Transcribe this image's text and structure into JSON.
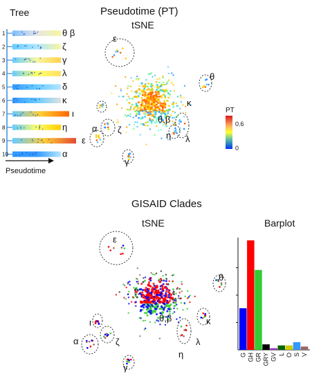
{
  "titles": {
    "tree": "Tree",
    "pseudotime": "Pseudotime (PT)",
    "tsne_top": "tSNE",
    "gisaid": "GISAID Clades",
    "tsne_bottom": "tSNE",
    "barplot": "Barplot",
    "pseudotime_axis": "Pseudotime"
  },
  "colorbar": {
    "label": "PT",
    "tick_high": "0.6",
    "tick_low": "0",
    "colors": [
      "#d7191c",
      "#fdae61",
      "#ffff33",
      "#66c2a5",
      "#2b83ba",
      "#0033ff"
    ]
  },
  "tree": {
    "rows": [
      {
        "index": "1",
        "letter": "θ β",
        "colors": [
          "#7fbfff",
          "#e6e6e6",
          "#f7f7a0"
        ]
      },
      {
        "index": "2",
        "letter": "ζ",
        "colors": [
          "#66ccff",
          "#aee6ff",
          "#f7f7a0"
        ]
      },
      {
        "index": "3",
        "letter": "γ",
        "colors": [
          "#66ccff",
          "#f7f7a0",
          "#ffd24d"
        ]
      },
      {
        "index": "4",
        "letter": "λ",
        "colors": [
          "#66ccff",
          "#ffff66",
          "#ffe066"
        ]
      },
      {
        "index": "5",
        "letter": "δ",
        "colors": [
          "#3399ff",
          "#66ccff",
          "#b3e6ff"
        ]
      },
      {
        "index": "6",
        "letter": "κ",
        "colors": [
          "#3399ff",
          "#66ccff",
          "#e0e0e0"
        ]
      },
      {
        "index": "7",
        "letter": "ι",
        "colors": [
          "#66ccff",
          "#ffcc33",
          "#ff6600"
        ]
      },
      {
        "index": "8",
        "letter": "η",
        "colors": [
          "#66ccff",
          "#ffff66",
          "#ffcc00"
        ]
      },
      {
        "index": "9",
        "letter": "ε",
        "colors": [
          "#66ccff",
          "#ffcc33",
          "#e34a33"
        ]
      },
      {
        "index": "10",
        "letter": "α",
        "colors": [
          "#3399ff",
          "#3399ff",
          "#b3e6ff"
        ]
      }
    ]
  },
  "cluster_labels": [
    "ε",
    "θ",
    "κ",
    "α",
    "ζ",
    "θ,β",
    "η",
    "λ",
    "γ",
    "ι"
  ],
  "chart_data": {
    "type": "bar",
    "title": "Barplot",
    "categories": [
      "G",
      "GH",
      "GR",
      "GRY",
      "GV",
      "L",
      "O",
      "S",
      "V"
    ],
    "values": [
      38,
      100,
      73,
      5,
      1.5,
      4,
      4,
      7,
      3
    ],
    "colors": [
      "#0000ff",
      "#ff0000",
      "#33cc33",
      "#000000",
      "#9933cc",
      "#006600",
      "#cccc00",
      "#3399ff",
      "#996666"
    ],
    "ylim": [
      0,
      100
    ]
  }
}
